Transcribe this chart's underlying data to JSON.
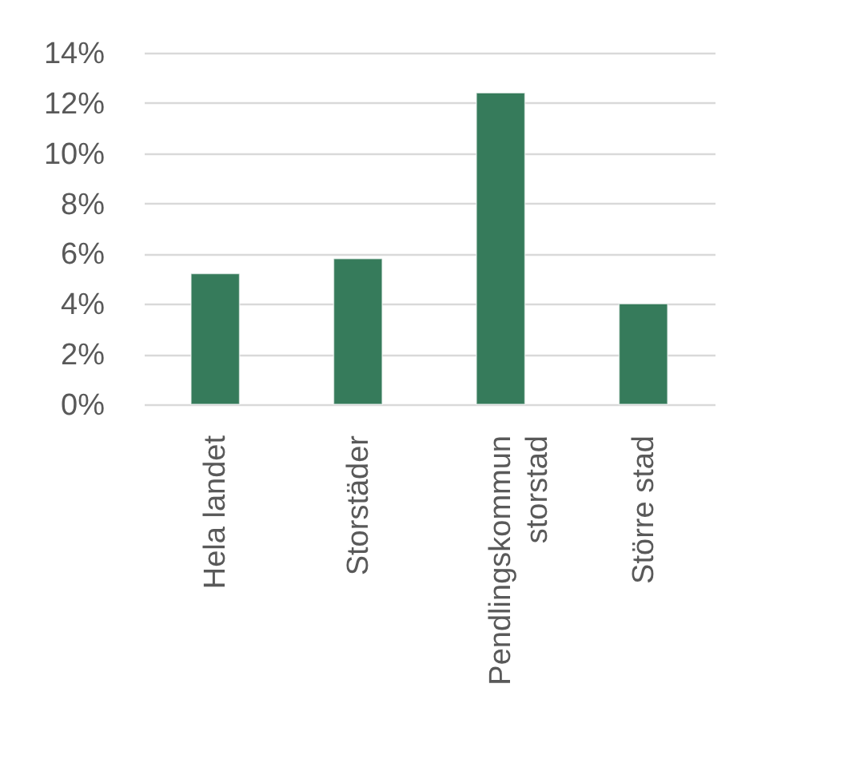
{
  "chart_data": {
    "type": "bar",
    "categories": [
      "Hela landet",
      "Storstäder",
      "Pendlingskommun storstad",
      "Större stad"
    ],
    "values": [
      5.2,
      5.8,
      12.4,
      4.0
    ],
    "color": "#367b5b",
    "ylim": [
      0,
      14
    ],
    "yticks": [
      {
        "value": 0,
        "label": "0%"
      },
      {
        "value": 2,
        "label": "2%"
      },
      {
        "value": 4,
        "label": "4%"
      },
      {
        "value": 6,
        "label": "6%"
      },
      {
        "value": 8,
        "label": "8%"
      },
      {
        "value": 10,
        "label": "10%"
      },
      {
        "value": 12,
        "label": "12%"
      },
      {
        "value": 14,
        "label": "14%"
      }
    ],
    "grid": "y"
  }
}
